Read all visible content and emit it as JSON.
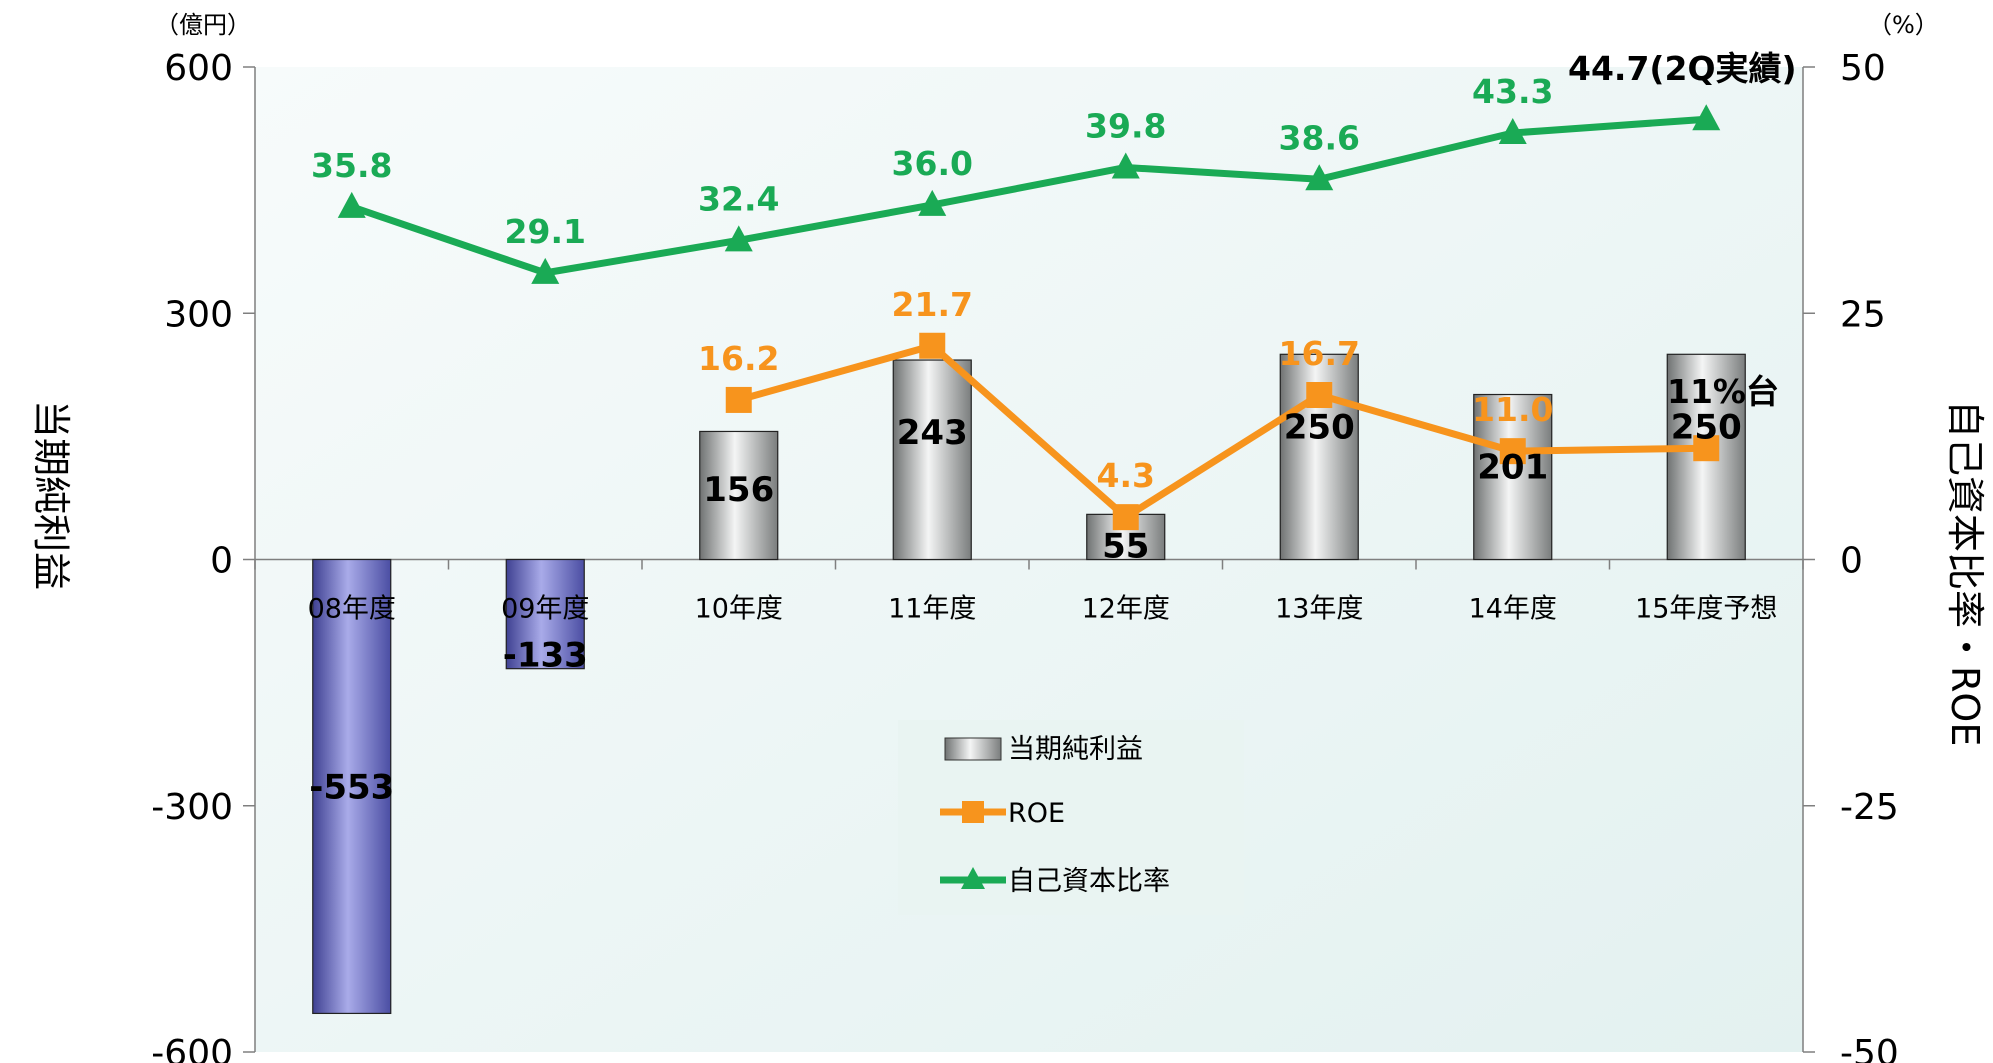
{
  "chart_data": {
    "type": "bar+line",
    "categories": [
      "08年度",
      "09年度",
      "10年度",
      "11年度",
      "12年度",
      "13年度",
      "14年度",
      "15年度予想"
    ],
    "left_axis": {
      "title": "当期純利益",
      "unit": "（億円）",
      "ylim": [
        -600,
        600
      ],
      "ticks": [
        600,
        300,
        0,
        -300,
        -600
      ]
    },
    "right_axis": {
      "title": "自己資本比率・ROE",
      "unit": "（%）",
      "ylim": [
        -50,
        50
      ],
      "ticks": [
        50,
        25,
        0,
        -25,
        -50
      ]
    },
    "series": [
      {
        "name": "当期純利益",
        "type": "bar",
        "axis": "left",
        "values": [
          -553,
          -133,
          156,
          243,
          55,
          250,
          201,
          250
        ],
        "labels": [
          "-553",
          "-133",
          "156",
          "243",
          "55",
          "250",
          "201",
          "250"
        ]
      },
      {
        "name": "ROE",
        "type": "line",
        "axis": "right",
        "color": "#f7941d",
        "values": [
          null,
          null,
          16.2,
          21.7,
          4.3,
          16.7,
          11.0,
          11.3
        ],
        "labels": [
          "",
          "",
          "16.2",
          "21.7",
          "4.3",
          "16.7",
          "11.0",
          ""
        ]
      },
      {
        "name": "自己資本比率",
        "type": "line",
        "axis": "right",
        "color": "#1aaa55",
        "values": [
          35.8,
          29.1,
          32.4,
          36.0,
          39.8,
          38.6,
          43.3,
          44.7
        ],
        "labels": [
          "35.8",
          "29.1",
          "32.4",
          "36.0",
          "39.8",
          "38.6",
          "43.3",
          ""
        ]
      }
    ],
    "annotations": [
      "44.7(2Q実績)",
      "11%台"
    ],
    "colors": {
      "positive_bar": "#b9bcbc",
      "negative_bar": "#8c8fd6",
      "roe": "#f7941d",
      "equity_ratio": "#1aaa55",
      "plot_bg": "#eef6f6"
    },
    "legend_position": "center"
  }
}
